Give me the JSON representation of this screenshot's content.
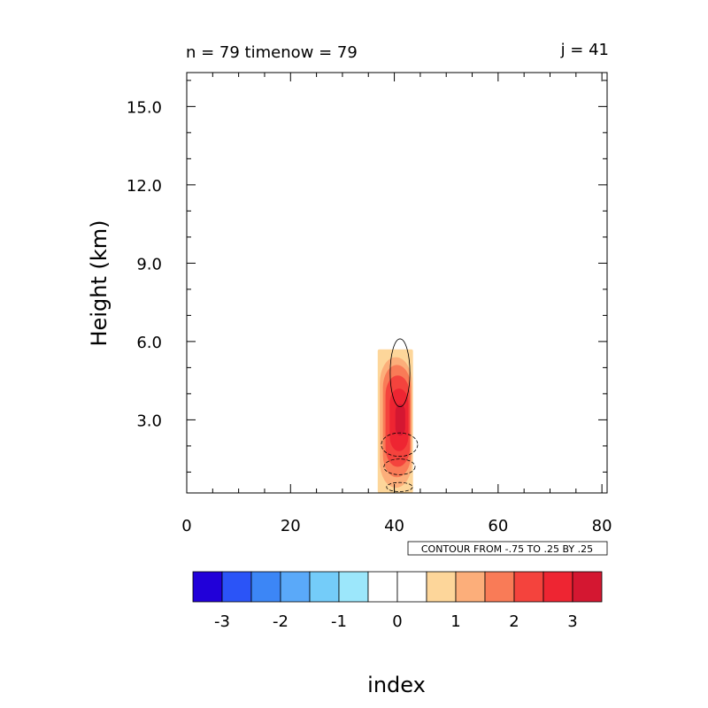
{
  "chart_data": {
    "type": "heatmap",
    "title_left": "n = 79 timenow = 79",
    "title_right": "j = 41",
    "xlabel": "index",
    "ylabel": "Height (km)",
    "xlim": [
      0,
      81
    ],
    "ylim": [
      0.2,
      16.3
    ],
    "x_ticks": [
      0,
      20,
      40,
      60,
      80
    ],
    "x_tick_labels": [
      "0",
      "20",
      "40",
      "60",
      "80"
    ],
    "y_ticks": [
      3,
      6,
      9,
      12,
      15
    ],
    "y_tick_labels": [
      "3.0",
      "6.0",
      "9.0",
      "12.0",
      "15.0"
    ],
    "contour_note": "CONTOUR FROM -.75 TO .25 BY .25",
    "colorbar": {
      "colors": [
        "#2100d9",
        "#2b54f7",
        "#3c86f6",
        "#5aa9f9",
        "#74ccf9",
        "#9ce7fb",
        "#ffffff",
        "#ffffff",
        "#fdd69a",
        "#fcae7a",
        "#f97b57",
        "#f4433d",
        "#ee2532",
        "#d41731"
      ],
      "tick_labels": [
        "-3",
        "-2",
        "-1",
        "0",
        "1",
        "2",
        "3"
      ]
    },
    "fill_levels": [
      {
        "level": 0.5,
        "color": "#fdd69a",
        "x_range": [
          36.8,
          43.6
        ],
        "y_range": [
          0.2,
          5.7
        ]
      },
      {
        "level": 1.0,
        "color": "#fcae7a",
        "x_range": [
          37.2,
          43.4
        ],
        "y_range": [
          0.4,
          5.4
        ]
      },
      {
        "level": 1.5,
        "color": "#f97b57",
        "x_range": [
          37.8,
          43.2
        ],
        "y_range": [
          0.8,
          5.1
        ]
      },
      {
        "level": 2.0,
        "color": "#f4433d",
        "x_range": [
          38.3,
          43.0
        ],
        "y_range": [
          1.2,
          4.7
        ]
      },
      {
        "level": 2.5,
        "color": "#ee2532",
        "x_range": [
          39.1,
          42.7
        ],
        "y_range": [
          1.8,
          4.2
        ]
      },
      {
        "level": 3.0,
        "color": "#d41731",
        "x_range": [
          40.2,
          42.1
        ],
        "y_range": [
          2.4,
          3.6
        ]
      }
    ],
    "contours": [
      {
        "level": 0.25,
        "style": "solid",
        "x_range": [
          39.2,
          43.0
        ],
        "y_range": [
          3.5,
          6.1
        ]
      },
      {
        "level": -0.25,
        "style": "dashed",
        "x_range": [
          37.5,
          44.5
        ],
        "y_range": [
          1.6,
          2.5
        ]
      },
      {
        "level": -0.5,
        "style": "dashed",
        "x_range": [
          38.0,
          44.0
        ],
        "y_range": [
          0.9,
          1.5
        ]
      },
      {
        "level": -0.75,
        "style": "dashed",
        "x_range": [
          38.5,
          43.5
        ],
        "y_range": [
          0.25,
          0.6
        ]
      }
    ]
  }
}
